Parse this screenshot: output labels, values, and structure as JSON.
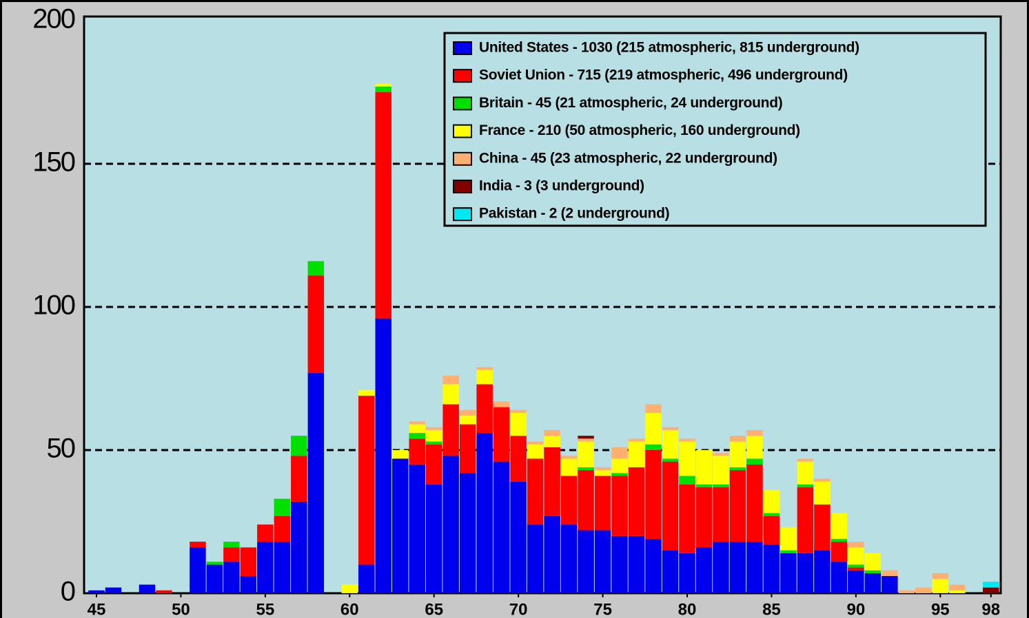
{
  "chart_data": {
    "type": "stacked_bar",
    "x": [
      45,
      46,
      47,
      48,
      49,
      50,
      51,
      52,
      53,
      54,
      55,
      56,
      57,
      58,
      59,
      60,
      61,
      62,
      63,
      64,
      65,
      66,
      67,
      68,
      69,
      70,
      71,
      72,
      73,
      74,
      75,
      76,
      77,
      78,
      79,
      80,
      81,
      82,
      83,
      84,
      85,
      86,
      87,
      88,
      89,
      90,
      91,
      92,
      93,
      94,
      95,
      96,
      97,
      98
    ],
    "xlim": [
      44.5,
      98.5
    ],
    "xticks": [
      45,
      50,
      55,
      60,
      65,
      70,
      75,
      80,
      85,
      90,
      95,
      98
    ],
    "ylim": [
      0,
      200
    ],
    "yticks": [
      0,
      50,
      100,
      150,
      200
    ],
    "grid": true,
    "legend": "top-right",
    "series": [
      {
        "name": "United States - 1030 (215 atmospheric, 815 underground)",
        "color": "#0000ee",
        "values": [
          1,
          2,
          0,
          3,
          0,
          0,
          16,
          10,
          11,
          6,
          18,
          18,
          32,
          77,
          0,
          0,
          10,
          96,
          47,
          45,
          38,
          48,
          42,
          56,
          46,
          39,
          24,
          27,
          24,
          22,
          22,
          20,
          20,
          19,
          15,
          14,
          16,
          18,
          18,
          18,
          17,
          14,
          14,
          15,
          11,
          8,
          7,
          6,
          0,
          0,
          0,
          0,
          0,
          0
        ]
      },
      {
        "name": "Soviet Union - 715 (219 atmospheric, 496 underground)",
        "color": "#ff0000",
        "values": [
          0,
          0,
          0,
          0,
          1,
          0,
          2,
          0,
          5,
          10,
          6,
          9,
          16,
          34,
          0,
          0,
          59,
          79,
          0,
          9,
          14,
          18,
          17,
          17,
          19,
          16,
          23,
          24,
          17,
          21,
          19,
          21,
          24,
          31,
          31,
          24,
          21,
          19,
          25,
          27,
          10,
          0,
          23,
          16,
          7,
          1,
          0,
          0,
          0,
          0,
          0,
          0,
          0,
          0
        ]
      },
      {
        "name": "Britain - 45 (21 atmospheric, 24 underground)",
        "color": "#00e000",
        "values": [
          0,
          0,
          0,
          0,
          0,
          0,
          0,
          1,
          2,
          0,
          0,
          6,
          7,
          5,
          0,
          0,
          0,
          2,
          0,
          2,
          1,
          0,
          0,
          0,
          0,
          0,
          0,
          0,
          0,
          1,
          0,
          1,
          0,
          2,
          1,
          3,
          1,
          1,
          1,
          2,
          1,
          1,
          1,
          0,
          1,
          1,
          1,
          0,
          0,
          0,
          0,
          0,
          0,
          0
        ]
      },
      {
        "name": "France - 210 (50 atmospheric, 160 underground)",
        "color": "#ffff00",
        "values": [
          0,
          0,
          0,
          0,
          0,
          0,
          0,
          0,
          0,
          0,
          0,
          0,
          0,
          0,
          0,
          3,
          2,
          1,
          3,
          3,
          4,
          7,
          3,
          5,
          0,
          8,
          5,
          4,
          6,
          9,
          2,
          5,
          9,
          11,
          10,
          12,
          12,
          10,
          9,
          8,
          8,
          8,
          8,
          8,
          9,
          6,
          6,
          0,
          0,
          0,
          5,
          1,
          0,
          0
        ]
      },
      {
        "name": "China - 45 (23 atmospheric, 22 underground)",
        "color": "#ffb070",
        "values": [
          0,
          0,
          0,
          0,
          0,
          0,
          0,
          0,
          0,
          0,
          0,
          0,
          0,
          0,
          0,
          0,
          0,
          0,
          0,
          1,
          1,
          3,
          2,
          1,
          2,
          1,
          1,
          2,
          1,
          1,
          1,
          4,
          1,
          3,
          1,
          1,
          0,
          1,
          2,
          2,
          0,
          0,
          1,
          1,
          0,
          2,
          0,
          2,
          1,
          2,
          2,
          2,
          0,
          0
        ]
      },
      {
        "name": "India - 3 (3 underground)",
        "color": "#800000",
        "values": [
          0,
          0,
          0,
          0,
          0,
          0,
          0,
          0,
          0,
          0,
          0,
          0,
          0,
          0,
          0,
          0,
          0,
          0,
          0,
          0,
          0,
          0,
          0,
          0,
          0,
          0,
          0,
          0,
          0,
          1,
          0,
          0,
          0,
          0,
          0,
          0,
          0,
          0,
          0,
          0,
          0,
          0,
          0,
          0,
          0,
          0,
          0,
          0,
          0,
          0,
          0,
          0,
          0,
          2
        ]
      },
      {
        "name": "Pakistan - 2 (2 underground)",
        "color": "#00e8f0",
        "values": [
          0,
          0,
          0,
          0,
          0,
          0,
          0,
          0,
          0,
          0,
          0,
          0,
          0,
          0,
          0,
          0,
          0,
          0,
          0,
          0,
          0,
          0,
          0,
          0,
          0,
          0,
          0,
          0,
          0,
          0,
          0,
          0,
          0,
          0,
          0,
          0,
          0,
          0,
          0,
          0,
          0,
          0,
          0,
          0,
          0,
          0,
          0,
          0,
          0,
          0,
          0,
          0,
          0,
          2
        ]
      }
    ]
  }
}
